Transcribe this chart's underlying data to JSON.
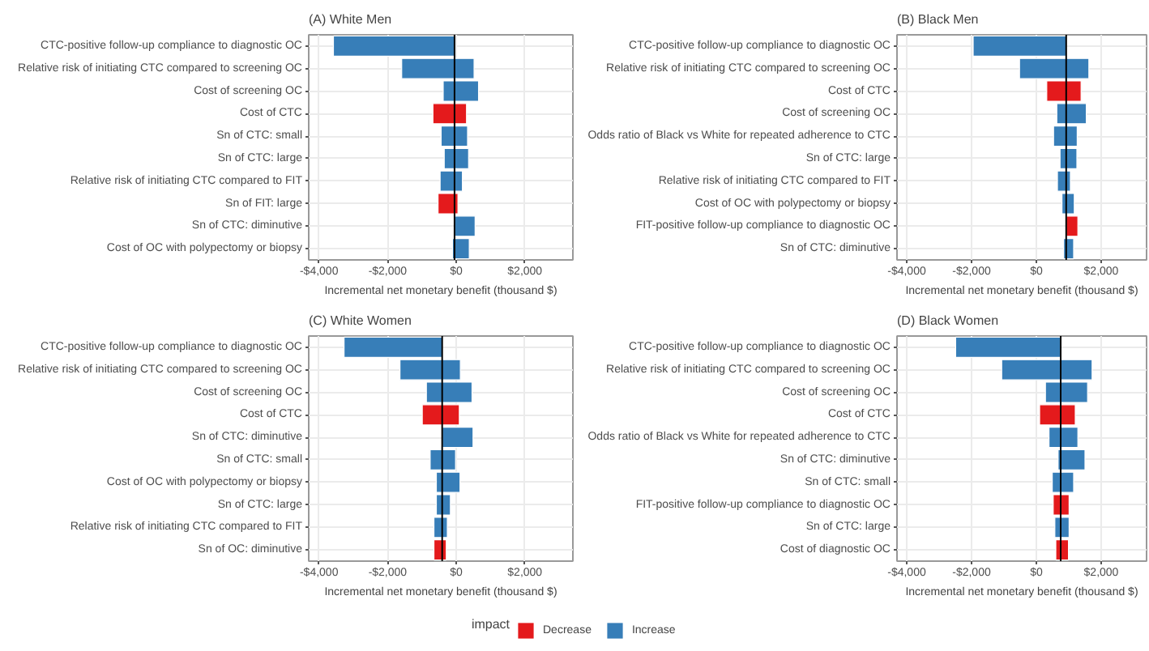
{
  "chart_data": [
    {
      "type": "bar",
      "orientation": "horizontal",
      "title": "(A) White Men",
      "xlabel": "Incremental net monetary benefit (thousand $)",
      "categories": [
        "CTC-positive follow-up compliance to diagnostic OC",
        "Relative risk of initiating CTC compared to screening OC",
        "Cost of screening OC",
        "Cost of CTC",
        "Sn of CTC: small",
        "Sn of CTC: large",
        "Relative risk of initiating CTC compared to FIT",
        "Sn of FIT: large",
        "Sn of CTC: diminutive",
        "Cost of OC with polypectomy or biopsy"
      ],
      "series": [
        {
          "color": "#e41a1c",
          "base": [
            null,
            null,
            null,
            -680,
            null,
            null,
            null,
            -530,
            null,
            null
          ],
          "values": [
            null,
            null,
            null,
            980,
            null,
            null,
            null,
            580,
            null,
            null
          ]
        },
        {
          "color": "#377eb8",
          "base": [
            -3580,
            -1590,
            -380,
            null,
            -440,
            -350,
            -470,
            null,
            -50,
            -110
          ],
          "values": [
            3530,
            2110,
            1030,
            null,
            770,
            710,
            650,
            null,
            600,
            490
          ]
        }
      ],
      "xlim": [
        -4300,
        3400
      ],
      "xticks": [
        {
          "value": -4000,
          "label": "-$4,000"
        },
        {
          "value": -2000,
          "label": "-$2,000"
        },
        {
          "value": 0,
          "label": "$0"
        },
        {
          "value": 2000,
          "label": "$2,000"
        }
      ],
      "grid": true,
      "ref_lines": [
        {
          "axis": "x",
          "value": -50,
          "color": "#000000"
        }
      ]
    },
    {
      "type": "bar",
      "orientation": "horizontal",
      "title": "(B) Black Men",
      "xlabel": "Incremental net monetary benefit (thousand $)",
      "categories": [
        "CTC-positive follow-up compliance to diagnostic OC",
        "Relative risk of initiating CTC compared to screening OC",
        "Cost of CTC",
        "Cost of screening OC",
        "Odds ratio of Black vs White for repeated adherence to CTC",
        "Sn of CTC: large",
        "Relative risk of initiating CTC compared to FIT",
        "Cost of OC with polypectomy or biopsy",
        "FIT-positive follow-up compliance to diagnostic OC",
        "Sn of CTC: diminutive"
      ],
      "series": [
        {
          "color": "#e41a1c",
          "base": [
            null,
            null,
            320,
            null,
            null,
            null,
            null,
            null,
            920,
            null
          ],
          "values": [
            null,
            null,
            1060,
            null,
            null,
            null,
            null,
            null,
            360,
            null
          ]
        },
        {
          "color": "#377eb8",
          "base": [
            -1950,
            -520,
            null,
            630,
            530,
            730,
            650,
            790,
            null,
            840
          ],
          "values": [
            2870,
            2140,
            null,
            910,
            730,
            520,
            400,
            380,
            null,
            310
          ]
        }
      ],
      "xlim": [
        -4300,
        3400
      ],
      "xticks": [
        {
          "value": -4000,
          "label": "-$4,000"
        },
        {
          "value": -2000,
          "label": "-$2,000"
        },
        {
          "value": 0,
          "label": "$0"
        },
        {
          "value": 2000,
          "label": "$2,000"
        }
      ],
      "grid": true,
      "ref_lines": [
        {
          "axis": "x",
          "value": 920,
          "color": "#000000"
        }
      ]
    },
    {
      "type": "bar",
      "orientation": "horizontal",
      "title": "(C) White Women",
      "xlabel": "Incremental net monetary benefit (thousand $)",
      "categories": [
        "CTC-positive follow-up compliance to diagnostic OC",
        "Relative risk of initiating CTC compared to screening OC",
        "Cost of screening OC",
        "Cost of CTC",
        "Sn of CTC: diminutive",
        "Sn of CTC: small",
        "Cost of OC with polypectomy or biopsy",
        "Sn of CTC: large",
        "Relative risk of initiating CTC compared to FIT",
        "Sn of OC: diminutive"
      ],
      "series": [
        {
          "color": "#e41a1c",
          "base": [
            null,
            null,
            null,
            -990,
            null,
            null,
            null,
            null,
            null,
            -650
          ],
          "values": [
            null,
            null,
            null,
            1080,
            null,
            null,
            null,
            null,
            null,
            360
          ]
        },
        {
          "color": "#377eb8",
          "base": [
            -3270,
            -1640,
            -870,
            null,
            -410,
            -760,
            -580,
            -580,
            -650,
            null
          ],
          "values": [
            2860,
            1760,
            1330,
            null,
            900,
            740,
            690,
            410,
            390,
            null
          ]
        }
      ],
      "xlim": [
        -4300,
        3400
      ],
      "xticks": [
        {
          "value": -4000,
          "label": "-$4,000"
        },
        {
          "value": -2000,
          "label": "-$2,000"
        },
        {
          "value": 0,
          "label": "$0"
        },
        {
          "value": 2000,
          "label": "$2,000"
        }
      ],
      "grid": true,
      "ref_lines": [
        {
          "axis": "x",
          "value": -410,
          "color": "#000000"
        }
      ]
    },
    {
      "type": "bar",
      "orientation": "horizontal",
      "title": "(D) Black Women",
      "xlabel": "Incremental net monetary benefit (thousand $)",
      "categories": [
        "CTC-positive follow-up compliance to diagnostic OC",
        "Relative risk of initiating CTC compared to screening OC",
        "Cost of screening OC",
        "Cost of CTC",
        "Odds ratio of Black vs White for repeated adherence to CTC",
        "Sn of CTC: diminutive",
        "Sn of CTC: small",
        "FIT-positive follow-up compliance to diagnostic OC",
        "Sn of CTC: large",
        "Cost of diagnostic OC"
      ],
      "series": [
        {
          "name": "Decrease",
          "color": "#e41a1c",
          "base": [
            null,
            null,
            null,
            100,
            null,
            null,
            null,
            520,
            null,
            600
          ],
          "values": [
            null,
            null,
            null,
            1100,
            null,
            null,
            null,
            490,
            null,
            390
          ]
        },
        {
          "name": "Increase",
          "color": "#377eb8",
          "base": [
            -2490,
            -1070,
            280,
            null,
            390,
            670,
            490,
            null,
            570,
            null
          ],
          "values": [
            3240,
            2790,
            1300,
            null,
            890,
            830,
            660,
            null,
            440,
            null
          ]
        }
      ],
      "xlim": [
        -4300,
        3400
      ],
      "xticks": [
        {
          "value": -4000,
          "label": "-$4,000"
        },
        {
          "value": -2000,
          "label": "-$2,000"
        },
        {
          "value": 0,
          "label": "$0"
        },
        {
          "value": 2000,
          "label": "$2,000"
        }
      ],
      "grid": true,
      "ref_lines": [
        {
          "axis": "x",
          "value": 750,
          "color": "#000000"
        }
      ],
      "legend": "bottom",
      "legend_title": "impact"
    }
  ]
}
